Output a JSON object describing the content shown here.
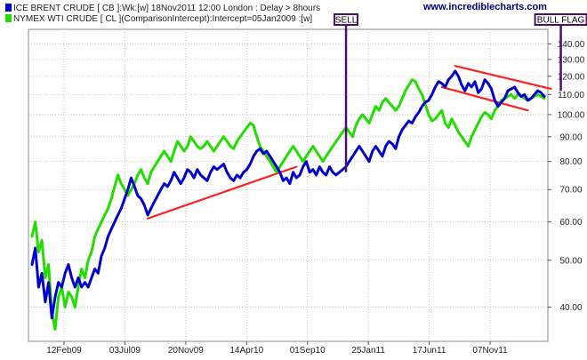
{
  "legend": {
    "series1_label": "ICE BRENT CRUDE [ CB ]:Wk:[w]  18Nov2011 12:00 London   : Delay > 8hours",
    "series2_label": "NYMEX WTI CRUDE [ CL ](ComparisonIntercept):Intercept=05Jan2009  :[w]"
  },
  "watermark": "www.incrediblecharts.com",
  "colors": {
    "brent": "#0000cc",
    "wti": "#22dd00",
    "trendline": "#ff2020",
    "annotation": "#4b0f6e",
    "grid": "#b8b8b8",
    "plot_bg": "#ffffff"
  },
  "annotations": {
    "sell_label": "SELL",
    "bull_flag_label": "BULL FLAG"
  },
  "chart_data": {
    "type": "line",
    "title": "",
    "xlabel": "",
    "ylabel": "",
    "y_scale": "log",
    "ylim": [
      34,
      150
    ],
    "y_ticks": [
      40,
      50,
      60,
      70,
      80,
      90,
      100,
      110,
      120,
      130,
      140
    ],
    "y_tick_labels": [
      "40.00",
      "50.00",
      "60.00",
      "70.00",
      "80.00",
      "90.00",
      "100.00",
      "110.00",
      "120.00",
      "130.00",
      "140.00"
    ],
    "x_tick_labels": [
      "12Feb09",
      "03Jul09",
      "20Nov09",
      "14Apr10",
      "01Sep10",
      "25Jan11",
      "17Jun11",
      "07Nov11"
    ],
    "grid": true,
    "legend_position": "top-left",
    "series": [
      {
        "name": "ICE BRENT CRUDE [ CB ]",
        "values": [
          49,
          53,
          44,
          47,
          41,
          45,
          38,
          42,
          45,
          44,
          47,
          49,
          46,
          44,
          46,
          44,
          45,
          44,
          46,
          48,
          47,
          51,
          53,
          56,
          58,
          60,
          62,
          64,
          67,
          70,
          74,
          71,
          68,
          67,
          65,
          62,
          64,
          66,
          68,
          70,
          72,
          71,
          73,
          76,
          74,
          72,
          74,
          77,
          76,
          74,
          77,
          75,
          74,
          73,
          76,
          78,
          77,
          78,
          79,
          76,
          74,
          73,
          75,
          74,
          76,
          77,
          79,
          82,
          84,
          85,
          83,
          84,
          82,
          80,
          78,
          76,
          73,
          74,
          72,
          76,
          74,
          75,
          78,
          80,
          76,
          77,
          75,
          78,
          76,
          75,
          78,
          76,
          75,
          76,
          77,
          78,
          80,
          82,
          84,
          86,
          84,
          82,
          80,
          84,
          86,
          84,
          82,
          86,
          88,
          87,
          85,
          90,
          93,
          95,
          97,
          96,
          99,
          101,
          104,
          106,
          107,
          110,
          114,
          117,
          116,
          114,
          118,
          120,
          123,
          120,
          115,
          112,
          116,
          114,
          117,
          111,
          113,
          118,
          116,
          113,
          107,
          104,
          106,
          108,
          112,
          113,
          114,
          111,
          109,
          110,
          107,
          108,
          110,
          112,
          111,
          109
        ]
      },
      {
        "name": "NYMEX WTI CRUDE [ CL ]",
        "values": [
          56,
          60,
          52,
          55,
          46,
          49,
          39,
          36,
          42,
          44,
          40,
          43,
          42,
          40,
          44,
          48,
          46,
          50,
          52,
          56,
          58,
          60,
          62,
          64,
          67,
          71,
          75,
          72,
          70,
          68,
          70,
          72,
          75,
          77,
          74,
          72,
          76,
          78,
          80,
          82,
          84,
          82,
          80,
          84,
          88,
          86,
          84,
          86,
          90,
          88,
          86,
          85,
          86,
          88,
          86,
          84,
          86,
          88,
          90,
          88,
          86,
          85,
          88,
          90,
          92,
          94,
          96,
          95,
          90,
          86,
          84,
          82,
          80,
          78,
          76,
          78,
          80,
          82,
          84,
          86,
          84,
          82,
          80,
          82,
          84,
          86,
          84,
          82,
          80,
          82,
          84,
          86,
          88,
          90,
          92,
          94,
          92,
          90,
          95,
          98,
          100,
          98,
          96,
          100,
          104,
          102,
          106,
          108,
          106,
          104,
          102,
          104,
          108,
          112,
          115,
          118,
          117,
          113,
          110,
          105,
          100,
          97,
          98,
          100,
          102,
          96,
          94,
          98,
          95,
          92,
          90,
          88,
          86,
          90,
          93,
          96,
          99,
          101,
          100,
          98,
          102,
          104,
          107,
          108,
          109,
          110,
          108,
          110,
          109,
          108,
          107,
          108,
          109,
          110,
          109,
          108
        ]
      }
    ],
    "trendlines": [
      {
        "from_index": 35,
        "from_value": 61,
        "to_index": 80,
        "to_value": 78
      },
      {
        "from_index": 128,
        "from_value": 126,
        "to_index": 157,
        "to_value": 113
      },
      {
        "from_index": 124,
        "from_value": 114,
        "to_index": 150,
        "to_value": 102
      }
    ],
    "markers": [
      {
        "label": "SELL",
        "index": 95,
        "value": 76
      },
      {
        "label": "BULL FLAG",
        "index": 160,
        "value": 112
      }
    ]
  }
}
